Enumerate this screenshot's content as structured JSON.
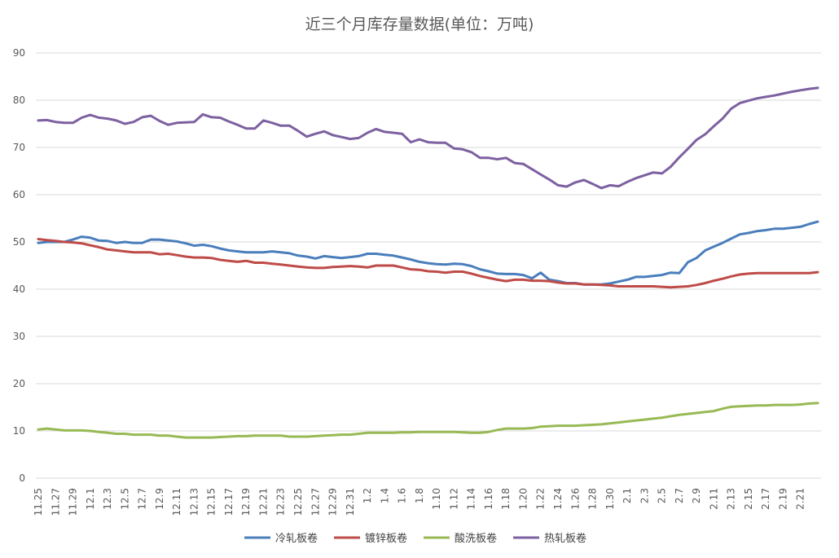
{
  "chart_data": {
    "type": "line",
    "title": "近三个月库存量数据(单位：万吨)",
    "ylim": [
      0,
      90
    ],
    "yticks": [
      0,
      10,
      20,
      30,
      40,
      50,
      60,
      70,
      80,
      90
    ],
    "grid": true,
    "legend_position": "bottom",
    "x_tick_labels": [
      "11.25",
      "11.27",
      "11.29",
      "12.1",
      "12.3",
      "12.5",
      "12.7",
      "12.9",
      "12.11",
      "12.13",
      "12.15",
      "12.17",
      "12.19",
      "12.21",
      "12.23",
      "12.25",
      "12.27",
      "12.29",
      "12.31",
      "1.2",
      "1.4",
      "1.6",
      "1.8",
      "1.10",
      "1.12",
      "1.14",
      "1.16",
      "1.18",
      "1.20",
      "1.22",
      "1.24",
      "1.26",
      "1.28",
      "1.30",
      "2.1",
      "2.3",
      "2.5",
      "2.7",
      "2.9",
      "2.11",
      "2.13",
      "2.15",
      "2.17",
      "2.19",
      "2.21"
    ],
    "series": [
      {
        "name": "冷轧板卷",
        "color": "#4a7ebb",
        "values": [
          49.8,
          50.0,
          50.0,
          50.0,
          50.5,
          51.1,
          50.9,
          50.3,
          50.2,
          49.8,
          50.0,
          49.8,
          49.8,
          50.5,
          50.5,
          50.3,
          50.1,
          49.7,
          49.2,
          49.4,
          49.1,
          48.6,
          48.2,
          48.0,
          47.8,
          47.8,
          47.8,
          48.0,
          47.8,
          47.6,
          47.1,
          46.9,
          46.5,
          47.0,
          46.8,
          46.6,
          46.8,
          47.0,
          47.5,
          47.5,
          47.3,
          47.1,
          46.7,
          46.3,
          45.8,
          45.5,
          45.3,
          45.2,
          45.4,
          45.3,
          44.9,
          44.2,
          43.8,
          43.3,
          43.2,
          43.2,
          43.0,
          42.3,
          43.5,
          42.0,
          41.7,
          41.3,
          41.3,
          41.0,
          41.0,
          41.0,
          41.2,
          41.6,
          42.0,
          42.6,
          42.6,
          42.8,
          43.0,
          43.5,
          43.4,
          45.7,
          46.6,
          48.2,
          49.0,
          49.8,
          50.7,
          51.6,
          51.9,
          52.3,
          52.5,
          52.8,
          52.8,
          53.0,
          53.2,
          53.8,
          54.3
        ]
      },
      {
        "name": "镀锌板卷",
        "color": "#be4b48",
        "values": [
          50.6,
          50.4,
          50.2,
          50.0,
          49.9,
          49.7,
          49.3,
          48.9,
          48.4,
          48.2,
          48.0,
          47.8,
          47.8,
          47.8,
          47.4,
          47.5,
          47.2,
          46.9,
          46.7,
          46.7,
          46.6,
          46.2,
          46.0,
          45.8,
          46.0,
          45.6,
          45.6,
          45.4,
          45.2,
          45.0,
          44.8,
          44.6,
          44.5,
          44.5,
          44.7,
          44.8,
          44.9,
          44.8,
          44.6,
          45.0,
          45.0,
          45.0,
          44.6,
          44.2,
          44.1,
          43.8,
          43.7,
          43.5,
          43.7,
          43.7,
          43.3,
          42.8,
          42.4,
          42.0,
          41.7,
          42.0,
          42.0,
          41.8,
          41.8,
          41.7,
          41.4,
          41.2,
          41.2,
          41.0,
          41.0,
          40.9,
          40.8,
          40.6,
          40.6,
          40.6,
          40.6,
          40.6,
          40.5,
          40.4,
          40.5,
          40.6,
          40.9,
          41.3,
          41.8,
          42.2,
          42.7,
          43.1,
          43.3,
          43.4,
          43.4,
          43.4,
          43.4,
          43.4,
          43.4,
          43.4,
          43.6
        ]
      },
      {
        "name": "酸洗板卷",
        "color": "#98b954",
        "values": [
          10.3,
          10.5,
          10.3,
          10.1,
          10.1,
          10.1,
          10.0,
          9.8,
          9.6,
          9.4,
          9.4,
          9.2,
          9.2,
          9.2,
          9.0,
          9.0,
          8.8,
          8.6,
          8.6,
          8.6,
          8.6,
          8.7,
          8.8,
          8.9,
          8.9,
          9.0,
          9.0,
          9.0,
          9.0,
          8.8,
          8.8,
          8.8,
          8.9,
          9.0,
          9.1,
          9.2,
          9.2,
          9.4,
          9.6,
          9.6,
          9.6,
          9.6,
          9.7,
          9.7,
          9.8,
          9.8,
          9.8,
          9.8,
          9.8,
          9.7,
          9.6,
          9.6,
          9.8,
          10.2,
          10.5,
          10.5,
          10.5,
          10.6,
          10.9,
          11.0,
          11.1,
          11.1,
          11.1,
          11.2,
          11.3,
          11.4,
          11.6,
          11.8,
          12.0,
          12.2,
          12.4,
          12.6,
          12.8,
          13.1,
          13.4,
          13.6,
          13.8,
          14.0,
          14.2,
          14.7,
          15.1,
          15.2,
          15.3,
          15.4,
          15.4,
          15.5,
          15.5,
          15.5,
          15.6,
          15.8,
          15.9
        ]
      },
      {
        "name": "热轧板卷",
        "color": "#7d60a0",
        "values": [
          75.7,
          75.8,
          75.4,
          75.2,
          75.2,
          76.3,
          76.9,
          76.3,
          76.1,
          75.7,
          75.0,
          75.4,
          76.4,
          76.7,
          75.6,
          74.8,
          75.2,
          75.3,
          75.4,
          77.0,
          76.4,
          76.3,
          75.5,
          74.8,
          74.0,
          74.0,
          75.7,
          75.2,
          74.6,
          74.6,
          73.5,
          72.3,
          72.9,
          73.4,
          72.6,
          72.2,
          71.8,
          72.0,
          73.1,
          73.9,
          73.3,
          73.1,
          72.9,
          71.1,
          71.7,
          71.1,
          71.0,
          71.0,
          69.8,
          69.6,
          69.0,
          67.8,
          67.8,
          67.5,
          67.8,
          66.7,
          66.5,
          65.4,
          64.3,
          63.2,
          62.0,
          61.7,
          62.6,
          63.1,
          62.3,
          61.4,
          62.0,
          61.8,
          62.7,
          63.5,
          64.1,
          64.7,
          64.5,
          65.9,
          67.9,
          69.7,
          71.6,
          72.8,
          74.5,
          76.1,
          78.2,
          79.4,
          79.9,
          80.4,
          80.7,
          81.0,
          81.4,
          81.8,
          82.1,
          82.4,
          82.6
        ]
      }
    ]
  }
}
